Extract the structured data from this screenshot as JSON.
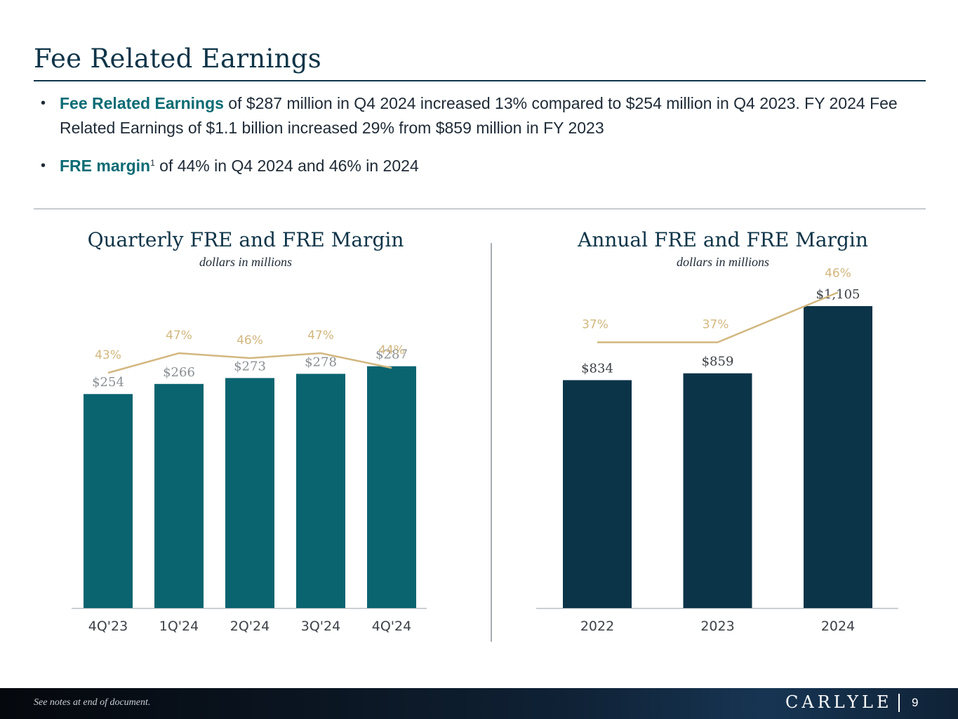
{
  "page": {
    "title": "Fee Related Earnings",
    "bullets": [
      {
        "highlight": "Fee Related Earnings",
        "text": " of $287 million in Q4 2024 increased 13% compared to $254 million in Q4 2023. FY 2024 Fee Related Earnings of $1.1 billion increased 29% from $859 million in FY 2023"
      },
      {
        "highlight": "FRE margin",
        "sup": "1",
        "text": " of 44%  in Q4 2024 and 46% in 2024"
      }
    ],
    "footer_note": "See notes at end of document.",
    "brand": "CARLYLE",
    "page_number": "9"
  },
  "colors": {
    "quarterly_bar": "#0a6470",
    "annual_bar": "#0b3448",
    "margin_line": "#d2b77f",
    "value_label": "#8a8f93"
  },
  "chart_data": [
    {
      "type": "bar",
      "title": "Quarterly FRE and FRE Margin",
      "subtitle": "dollars in millions",
      "categories": [
        "4Q'23",
        "1Q'24",
        "2Q'24",
        "3Q'24",
        "4Q'24"
      ],
      "series": [
        {
          "name": "FRE",
          "type": "bar",
          "values": [
            254,
            266,
            273,
            278,
            287
          ],
          "labels": [
            "$254",
            "$266",
            "$273",
            "$278",
            "$287"
          ]
        },
        {
          "name": "FRE Margin",
          "type": "line",
          "values": [
            43,
            47,
            46,
            47,
            44
          ],
          "labels": [
            "43%",
            "47%",
            "46%",
            "47%",
            "44%"
          ]
        }
      ],
      "ylim": [
        0,
        300
      ],
      "margin_axis_range": [
        0,
        60
      ]
    },
    {
      "type": "bar",
      "title": "Annual FRE and FRE Margin",
      "subtitle": "dollars in millions",
      "categories": [
        "2022",
        "2023",
        "2024"
      ],
      "series": [
        {
          "name": "FRE",
          "type": "bar",
          "values": [
            834,
            859,
            1105
          ],
          "labels": [
            "$834",
            "$859",
            "$1,105"
          ]
        },
        {
          "name": "FRE Margin",
          "type": "line",
          "values": [
            37,
            37,
            46
          ],
          "labels": [
            "37%",
            "37%",
            "46%"
          ]
        }
      ],
      "ylim": [
        0,
        1150
      ],
      "margin_axis_range": [
        0,
        52
      ]
    }
  ]
}
